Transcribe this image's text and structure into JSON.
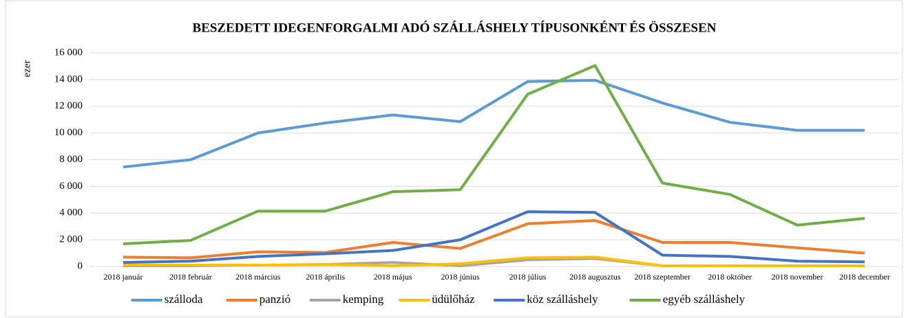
{
  "chart_data": {
    "type": "line",
    "title": "BESZEDETT IDEGENFORGALMI ADÓ SZÁLLÁSHELY TÍPUSONKÉNT ÉS ÖSSZESEN",
    "y_label": "ezer",
    "categories": [
      "2018 január",
      "2018 február",
      "2018 március",
      "2018 április",
      "2018 május",
      "2018 június",
      "2018 július",
      "2018 augusztus",
      "2018 szeptember",
      "2018 október",
      "2018 november",
      "2018 december"
    ],
    "series": [
      {
        "name": "szálloda",
        "color": "#5b9bd5",
        "values": [
          7450,
          8000,
          10000,
          10750,
          11350,
          10850,
          13850,
          13950,
          12250,
          10800,
          10200,
          10200
        ]
      },
      {
        "name": "panzió",
        "color": "#ed7d31",
        "values": [
          700,
          650,
          1100,
          1050,
          1800,
          1350,
          3200,
          3450,
          1800,
          1800,
          1400,
          1000
        ]
      },
      {
        "name": "kemping",
        "color": "#a5a5a5",
        "values": [
          50,
          50,
          100,
          150,
          300,
          50,
          500,
          600,
          50,
          50,
          50,
          50
        ]
      },
      {
        "name": "üdülőház",
        "color": "#ffc000",
        "values": [
          100,
          100,
          100,
          150,
          50,
          200,
          650,
          700,
          50,
          50,
          50,
          50
        ]
      },
      {
        "name": "köz szálláshely",
        "color": "#4472c4",
        "values": [
          300,
          400,
          750,
          950,
          1200,
          2000,
          4100,
          4050,
          850,
          750,
          400,
          350
        ]
      },
      {
        "name": "egyéb szálláshely",
        "color": "#70ad47",
        "values": [
          1700,
          1950,
          4150,
          4150,
          5600,
          5750,
          12900,
          15050,
          6250,
          5400,
          3100,
          3600
        ]
      }
    ],
    "ylim": [
      0,
      16000
    ],
    "yticks": [
      0,
      {
        "value": 2000,
        "label": "2 000"
      },
      {
        "value": 4000,
        "label": "4 000"
      },
      {
        "value": 6000,
        "label": "6 000"
      },
      {
        "value": 8000,
        "label": "8 000"
      },
      {
        "value": 10000,
        "label": "10 000"
      },
      {
        "value": 12000,
        "label": "12 000"
      },
      {
        "value": 14000,
        "label": "14 000"
      },
      {
        "value": 16000,
        "label": "16 000"
      }
    ],
    "grid": true,
    "legend": "bottom"
  }
}
